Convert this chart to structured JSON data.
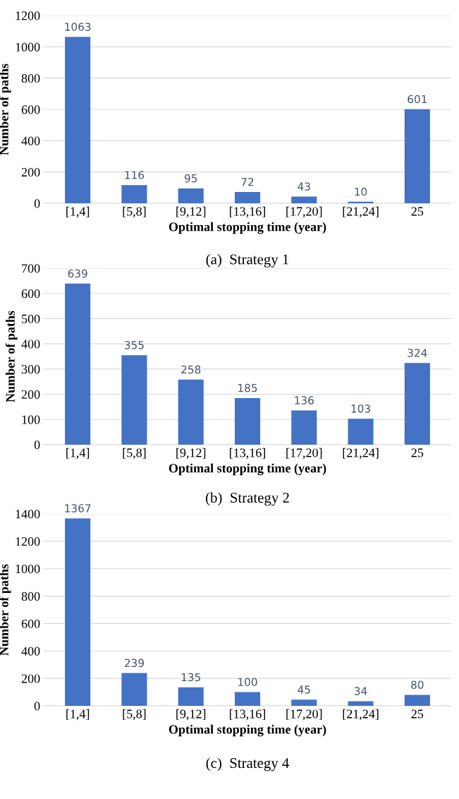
{
  "chart_data": [
    {
      "type": "bar",
      "categories": [
        "[1,4]",
        "[5,8]",
        "[9,12]",
        "[13,16]",
        "[17,20]",
        "[21,24]",
        "25"
      ],
      "values": [
        1063,
        116,
        95,
        72,
        43,
        10,
        601
      ],
      "color": "#4472c4",
      "data_labels": true,
      "xlabel": "Optimal stopping time (year)",
      "ylabel": "Number of paths",
      "ylim": [
        0,
        1200
      ],
      "yticks": [
        0,
        200,
        400,
        600,
        800,
        1000,
        1200
      ],
      "grid": "y",
      "annotations": [
        "(a)  Strategy 1"
      ]
    },
    {
      "type": "bar",
      "categories": [
        "[1,4]",
        "[5,8]",
        "[9,12]",
        "[13,16]",
        "[17,20]",
        "[21,24]",
        "25"
      ],
      "values": [
        639,
        355,
        258,
        185,
        136,
        103,
        324
      ],
      "color": "#4472c4",
      "data_labels": true,
      "xlabel": "Optimal stopping time (year)",
      "ylabel": "Number of paths",
      "ylim": [
        0,
        700
      ],
      "yticks": [
        0,
        100,
        200,
        300,
        400,
        500,
        600,
        700
      ],
      "grid": "y",
      "annotations": [
        "(b)  Strategy 2"
      ]
    },
    {
      "type": "bar",
      "categories": [
        "[1,4]",
        "[5,8]",
        "[9,12]",
        "[13,16]",
        "[17,20]",
        "[21,24]",
        "25"
      ],
      "values": [
        1367,
        239,
        135,
        100,
        45,
        34,
        80
      ],
      "color": "#4472c4",
      "data_labels": true,
      "xlabel": "Optimal stopping time (year)",
      "ylabel": "Number of paths",
      "ylim": [
        0,
        1400
      ],
      "yticks": [
        0,
        200,
        400,
        600,
        800,
        1000,
        1200,
        1400
      ],
      "grid": "y",
      "annotations": [
        "(c)  Strategy 4"
      ]
    }
  ]
}
